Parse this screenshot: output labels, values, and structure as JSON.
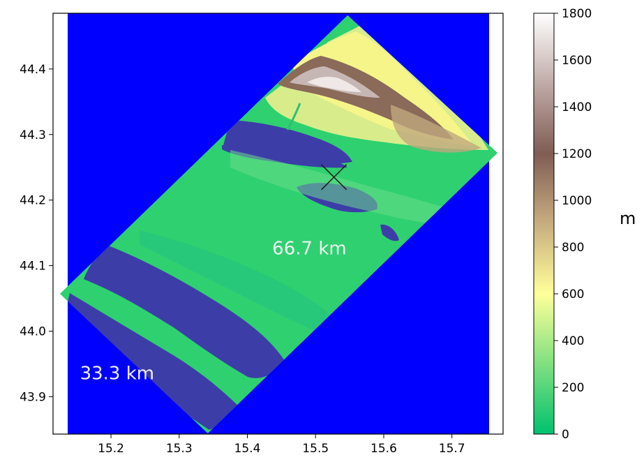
{
  "chart_data": {
    "type": "heatmap",
    "title": "",
    "xlabel": "",
    "ylabel": "",
    "xlim": [
      15.115,
      15.775
    ],
    "ylim": [
      43.843,
      44.485
    ],
    "x_ticks": [
      {
        "value": 15.2,
        "label": "15.2"
      },
      {
        "value": 15.3,
        "label": "15.3"
      },
      {
        "value": 15.4,
        "label": "15.4"
      },
      {
        "value": 15.5,
        "label": "15.5"
      },
      {
        "value": 15.6,
        "label": "15.6"
      },
      {
        "value": 15.7,
        "label": "15.7"
      }
    ],
    "y_ticks": [
      {
        "value": 43.9,
        "label": "43.9"
      },
      {
        "value": 44.0,
        "label": "44.0"
      },
      {
        "value": 44.1,
        "label": "44.1"
      },
      {
        "value": 44.2,
        "label": "44.2"
      },
      {
        "value": 44.3,
        "label": "44.3"
      },
      {
        "value": 44.4,
        "label": "44.4"
      }
    ],
    "background_color": "#0000ff",
    "sea_color": "#3d3da8",
    "footprint_polygon": [
      {
        "lon": 15.547,
        "lat": 44.482
      },
      {
        "lon": 15.767,
        "lat": 44.272
      },
      {
        "lon": 15.342,
        "lat": 43.844
      },
      {
        "lon": 15.125,
        "lat": 44.057
      }
    ],
    "marker": {
      "symbol": "x",
      "lon": 15.527,
      "lat": 44.235
    },
    "annotations": [
      {
        "text": "66.7 km",
        "lon": 15.491,
        "lat": 44.127
      },
      {
        "text": "33.3 km",
        "lon": 15.209,
        "lat": 43.936
      }
    ],
    "colorbar": {
      "label": "m",
      "min": 0,
      "max": 1800,
      "ticks": [
        0,
        200,
        400,
        600,
        800,
        1000,
        1200,
        1400,
        1600,
        1800
      ],
      "tick_labels": [
        "0",
        "200",
        "400",
        "600",
        "800",
        "1000",
        "1200",
        "1400",
        "1600",
        "1800"
      ],
      "colormap": "terrain",
      "stops": [
        {
          "value": 0,
          "color": "#00c16e"
        },
        {
          "value": 300,
          "color": "#80e080"
        },
        {
          "value": 600,
          "color": "#ffff99"
        },
        {
          "value": 900,
          "color": "#c8ad80"
        },
        {
          "value": 1200,
          "color": "#805c54"
        },
        {
          "value": 1500,
          "color": "#c0aba8"
        },
        {
          "value": 1800,
          "color": "#ffffff"
        }
      ]
    }
  }
}
